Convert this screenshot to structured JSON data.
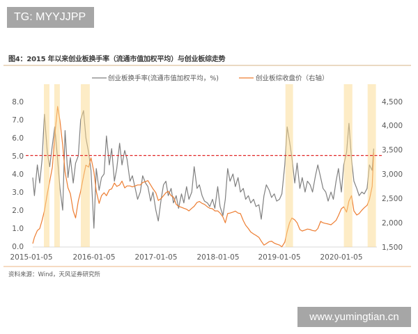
{
  "watermarks": {
    "top_left": "TG: MYYJJPP",
    "bottom_right": "www.yumingtian.cn"
  },
  "figure": {
    "title": "图4：2015 年以来创业板换手率（流通市值加权平均）与创业板综走势",
    "source": "资料来源：Wind，天风证券研究所"
  },
  "colors": {
    "turnover_line": "#7f7f7f",
    "index_line": "#ed7d31",
    "highlight_band": "#fbd98d",
    "reference_line": "#e02424"
  },
  "chart_data": {
    "type": "line",
    "title": "2015 年以来创业板换手率（流通市值加权平均）与创业板综走势",
    "xlabel": "",
    "ylabel_left": "换手率 (%)",
    "ylabel_right": "创业板综收盘价",
    "x_ticks": [
      "2015-01-05",
      "2016-01-05",
      "2017-01-05",
      "2018-01-05",
      "2019-01-05",
      "2020-01-05"
    ],
    "y_left_ticks": [
      "0.0",
      "1.0",
      "2.0",
      "3.0",
      "4.0",
      "5.0",
      "6.0",
      "7.0",
      "8.0"
    ],
    "y_right_ticks": [
      "1,500",
      "2,000",
      "2,500",
      "3,000",
      "3,500",
      "4,000",
      "4,500"
    ],
    "ylim_left": [
      0,
      8
    ],
    "ylim_right": [
      1500,
      4500
    ],
    "grid": false,
    "legend_position": "top",
    "legend": [
      {
        "label": "创业板换手率(流通市值加权平均，%)",
        "series": "turnover"
      },
      {
        "label": "创业板综收盘价（右轴）",
        "series": "index"
      }
    ],
    "reference_line": {
      "axis": "left",
      "value": 5.0,
      "style": "dashed",
      "color": "#e02424"
    },
    "highlight_periods": [
      {
        "start": "2015-03-12",
        "end": "2015-04-14"
      },
      {
        "start": "2015-05-12",
        "end": "2015-06-14"
      },
      {
        "start": "2015-10-16",
        "end": "2015-12-08"
      },
      {
        "start": "2019-02-05",
        "end": "2019-03-22"
      },
      {
        "start": "2020-01-16",
        "end": "2020-03-06"
      },
      {
        "start": "2020-06-04",
        "end": "2020-07-23"
      }
    ],
    "x": [
      "2015-01-05",
      "2015-01-15",
      "2015-02-01",
      "2015-02-15",
      "2015-03-01",
      "2015-03-15",
      "2015-04-01",
      "2015-04-15",
      "2015-05-01",
      "2015-05-15",
      "2015-06-01",
      "2015-06-15",
      "2015-07-01",
      "2015-07-15",
      "2015-08-01",
      "2015-08-15",
      "2015-09-01",
      "2015-09-15",
      "2015-10-01",
      "2015-10-15",
      "2015-11-01",
      "2015-11-15",
      "2015-12-01",
      "2015-12-15",
      "2016-01-01",
      "2016-01-15",
      "2016-02-01",
      "2016-02-15",
      "2016-03-01",
      "2016-03-15",
      "2016-04-01",
      "2016-04-15",
      "2016-05-01",
      "2016-05-15",
      "2016-06-01",
      "2016-06-15",
      "2016-07-01",
      "2016-07-15",
      "2016-08-01",
      "2016-08-15",
      "2016-09-01",
      "2016-09-15",
      "2016-10-01",
      "2016-10-15",
      "2016-11-01",
      "2016-11-15",
      "2016-12-01",
      "2016-12-15",
      "2017-01-01",
      "2017-01-15",
      "2017-02-01",
      "2017-02-15",
      "2017-03-01",
      "2017-03-15",
      "2017-04-01",
      "2017-04-15",
      "2017-05-01",
      "2017-05-15",
      "2017-06-01",
      "2017-06-15",
      "2017-07-01",
      "2017-07-15",
      "2017-08-01",
      "2017-08-15",
      "2017-09-01",
      "2017-09-15",
      "2017-10-01",
      "2017-10-15",
      "2017-11-01",
      "2017-11-15",
      "2017-12-01",
      "2017-12-15",
      "2018-01-01",
      "2018-01-15",
      "2018-02-01",
      "2018-02-15",
      "2018-03-01",
      "2018-03-15",
      "2018-04-01",
      "2018-04-15",
      "2018-05-01",
      "2018-05-15",
      "2018-06-01",
      "2018-06-15",
      "2018-07-01",
      "2018-07-15",
      "2018-08-01",
      "2018-08-15",
      "2018-09-01",
      "2018-09-15",
      "2018-10-01",
      "2018-10-15",
      "2018-11-01",
      "2018-11-15",
      "2018-12-01",
      "2018-12-15",
      "2019-01-01",
      "2019-01-15",
      "2019-02-01",
      "2019-02-15",
      "2019-03-01",
      "2019-03-15",
      "2019-04-01",
      "2019-04-15",
      "2019-05-01",
      "2019-05-15",
      "2019-06-01",
      "2019-06-15",
      "2019-07-01",
      "2019-07-15",
      "2019-08-01",
      "2019-08-15",
      "2019-09-01",
      "2019-09-15",
      "2019-10-01",
      "2019-10-15",
      "2019-11-01",
      "2019-11-15",
      "2019-12-01",
      "2019-12-15",
      "2020-01-01",
      "2020-01-15",
      "2020-02-01",
      "2020-02-15",
      "2020-03-01",
      "2020-03-15",
      "2020-04-01",
      "2020-04-15",
      "2020-05-01",
      "2020-05-15",
      "2020-06-01",
      "2020-06-15",
      "2020-07-01",
      "2020-07-10"
    ],
    "series": [
      {
        "name": "创业板换手率(流通市值加权平均，%)",
        "key": "turnover",
        "axis": "left",
        "values": [
          3.8,
          2.8,
          4.5,
          3.5,
          4.8,
          7.3,
          5.2,
          4.4,
          5.6,
          6.6,
          4.8,
          3.2,
          2.0,
          6.4,
          3.8,
          4.9,
          3.5,
          4.6,
          5.0,
          7.0,
          7.5,
          6.0,
          5.2,
          4.2,
          1.0,
          4.3,
          3.1,
          3.8,
          4.0,
          6.1,
          4.5,
          5.4,
          3.6,
          4.3,
          5.7,
          4.5,
          5.3,
          4.8,
          3.6,
          3.9,
          3.2,
          2.6,
          3.0,
          3.9,
          3.5,
          3.3,
          2.5,
          3.0,
          2.0,
          1.4,
          2.6,
          3.4,
          3.6,
          2.8,
          3.2,
          2.4,
          2.8,
          2.1,
          2.9,
          2.4,
          3.3,
          2.6,
          3.0,
          4.4,
          3.2,
          3.4,
          2.8,
          2.5,
          2.4,
          2.2,
          2.6,
          2.1,
          3.3,
          2.2,
          1.7,
          2.6,
          4.3,
          3.6,
          4.0,
          3.3,
          3.8,
          3.0,
          3.2,
          2.6,
          2.8,
          2.4,
          2.6,
          2.2,
          2.3,
          1.5,
          2.8,
          3.4,
          3.1,
          2.7,
          2.9,
          2.5,
          2.6,
          2.9,
          4.5,
          6.6,
          5.8,
          4.9,
          3.5,
          4.6,
          3.2,
          3.8,
          3.0,
          3.6,
          3.4,
          3.0,
          3.9,
          4.5,
          3.8,
          3.2,
          3.0,
          2.5,
          3.0,
          2.6,
          3.6,
          4.3,
          3.0,
          4.5,
          5.2,
          6.8,
          4.8,
          3.6,
          3.2,
          2.8,
          3.0,
          2.9,
          3.2,
          4.5,
          4.2,
          5.4
        ]
      },
      {
        "name": "创业板综收盘价（右轴）",
        "key": "index",
        "axis": "right",
        "values": [
          1570,
          1700,
          1840,
          1880,
          2050,
          2250,
          2600,
          2850,
          3150,
          3800,
          4400,
          4100,
          3600,
          3050,
          2720,
          2600,
          2245,
          2100,
          2450,
          2650,
          2960,
          3190,
          3150,
          3340,
          3050,
          2650,
          2400,
          2560,
          2620,
          2560,
          2680,
          2700,
          2820,
          2750,
          2780,
          2860,
          2720,
          2760,
          2760,
          2740,
          2760,
          2780,
          2780,
          2830,
          2850,
          2870,
          2780,
          2700,
          2620,
          2460,
          2500,
          2560,
          2620,
          2650,
          2560,
          2530,
          2380,
          2340,
          2320,
          2300,
          2280,
          2245,
          2300,
          2340,
          2420,
          2440,
          2400,
          2380,
          2330,
          2300,
          2290,
          2245,
          2245,
          2200,
          2120,
          2000,
          2190,
          2200,
          2220,
          2240,
          2200,
          2190,
          2045,
          1950,
          1880,
          1810,
          1770,
          1740,
          1700,
          1620,
          1540,
          1570,
          1610,
          1620,
          1580,
          1560,
          1540,
          1505,
          1600,
          1820,
          2000,
          2100,
          2060,
          2000,
          1860,
          1830,
          1850,
          1870,
          1860,
          1840,
          1830,
          1880,
          2030,
          2000,
          1985,
          1975,
          1960,
          2000,
          2050,
          2150,
          2290,
          2330,
          2220,
          2450,
          2560,
          2245,
          2160,
          2190,
          2260,
          2310,
          2360,
          2480,
          2750,
          3450
        ]
      }
    ]
  }
}
